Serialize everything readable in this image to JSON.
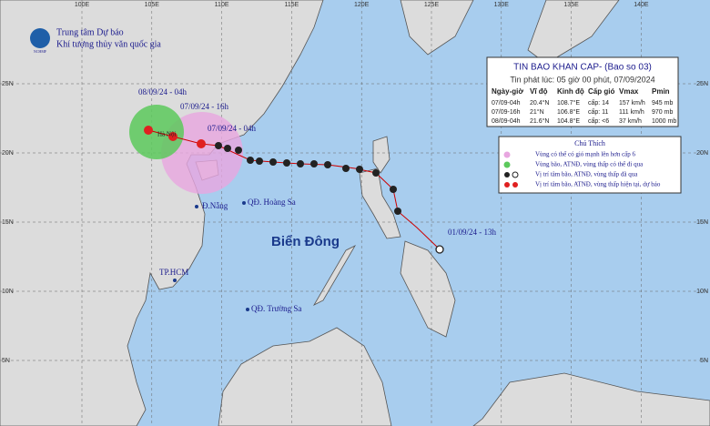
{
  "header": {
    "org": "Trung tâm Dự báo",
    "sub": "Khí tượng thủy văn quốc gia",
    "logo": "NCHMF"
  },
  "grid": {
    "lon": [
      "100E",
      "105E",
      "110E",
      "115E",
      "120E",
      "125E",
      "130E",
      "135E",
      "140E"
    ],
    "lat": [
      "25N",
      "20N",
      "15N",
      "10N",
      "5N"
    ]
  },
  "bulletin": {
    "title": "TIN BAO KHAN CAP- (Bao so 03)",
    "issued": "Tin phát lúc: 05 giờ 00 phút, 07/09/2024",
    "columns": [
      "Ngày-giờ",
      "Vĩ độ",
      "Kinh độ",
      "Cấp gió",
      "Vmax",
      "Pmin"
    ],
    "rows": [
      [
        "07/09-04h",
        "20.4°N",
        "108.7°E",
        "cấp: 14",
        "157 km/h",
        "945 mb"
      ],
      [
        "07/09-16h",
        "21°N",
        "106.8°E",
        "cấp: 11",
        "111 km/h",
        "970 mb"
      ],
      [
        "08/09-04h",
        "21.6°N",
        "104.8°E",
        "cấp: <6",
        "37 km/h",
        "1000 mb"
      ]
    ]
  },
  "legend": {
    "title": "Chú Thích",
    "items": [
      "Vùng có thể có gió mạnh lên hơn cấp 6",
      "Vùng bão, ATNĐ, vùng thấp có thể đi qua",
      "Vị trí tâm bão, ATNĐ, vùng thấp đã qua",
      "Vị trí tâm bão, ATNĐ, vùng thấp hiện tại, dự báo"
    ]
  },
  "places": {
    "sea": "Biển Đông",
    "paracel": "QĐ. Hoàng Sa",
    "spratly": "QĐ. Trường Sa",
    "danang": "Đ.Nẵng",
    "hcm": "TP.HCM",
    "hanoi": "Hà Nội"
  },
  "track_labels": [
    "08/09/24 - 04h",
    "07/09/24 - 16h",
    "07/09/24 - 04h",
    "01/09/24 - 13h"
  ]
}
